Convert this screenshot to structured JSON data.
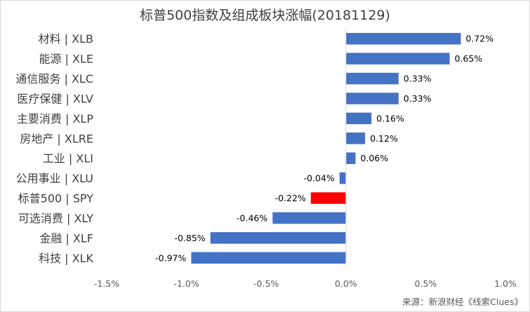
{
  "chart_data": {
    "type": "bar",
    "orientation": "horizontal",
    "title": "标普500指数及组成板块涨幅(20181129)",
    "source": "来源：新浪财经《线索Clues》",
    "xlim": [
      -1.5,
      1.0
    ],
    "x_ticks": [
      -1.5,
      -1.0,
      -0.5,
      0.0,
      0.5,
      1.0
    ],
    "x_tick_labels": [
      "-1.5%",
      "-1.0%",
      "-0.5%",
      "0.0%",
      "0.5%",
      "1.0%"
    ],
    "grid": false,
    "categories": [
      "材料 | XLB",
      "能源 | XLE",
      "通信服务 | XLC",
      "医疗保健 | XLV",
      "主要消费 | XLP",
      "房地产 | XLRE",
      "工业 | XLI",
      "公用事业 | XLU",
      "标普500 | SPY",
      "可选消费 | XLY",
      "金融 | XLF",
      "科技 | XLK"
    ],
    "values": [
      0.72,
      0.65,
      0.33,
      0.33,
      0.16,
      0.12,
      0.06,
      -0.04,
      -0.22,
      -0.46,
      -0.85,
      -0.97
    ],
    "value_labels": [
      "0.72%",
      "0.65%",
      "0.33%",
      "0.33%",
      "0.16%",
      "0.12%",
      "0.06%",
      "-0.04%",
      "-0.22%",
      "-0.46%",
      "-0.85%",
      "-0.97%"
    ],
    "colors": {
      "default": "#4472c4",
      "highlight": "#ff0000"
    },
    "highlight_index": 8
  }
}
